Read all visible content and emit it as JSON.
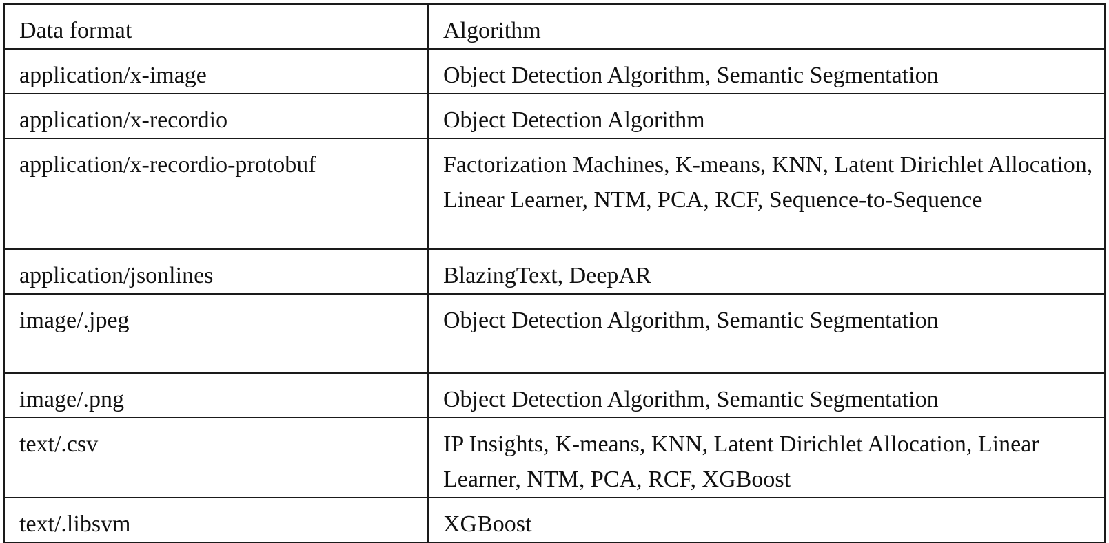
{
  "table": {
    "headers": [
      "Data format",
      "Algorithm"
    ],
    "rows": [
      {
        "format": "application/x-image",
        "algorithm": "Object Detection Algorithm, Semantic Segmentation"
      },
      {
        "format": "application/x-recordio",
        "algorithm": "Object Detection Algorithm"
      },
      {
        "format": "application/x-recordio-protobuf",
        "algorithm": "Factorization Machines, K-means, KNN, Latent Dirichlet Allocation, Linear Learner, NTM, PCA, RCF, Sequence-to-Sequence"
      },
      {
        "format": "application/jsonlines",
        "algorithm": "BlazingText, DeepAR"
      },
      {
        "format": "image/.jpeg",
        "algorithm": "Object Detection Algorithm, Semantic Segmentation"
      },
      {
        "format": "image/.png",
        "algorithm": "Object Detection Algorithm, Semantic Segmentation"
      },
      {
        "format": "text/.csv",
        "algorithm": "IP Insights, K-means, KNN, Latent Dirichlet Allocation, Linear Learner, NTM, PCA, RCF, XGBoost"
      },
      {
        "format": "text/.libsvm",
        "algorithm": "XGBoost"
      }
    ]
  }
}
